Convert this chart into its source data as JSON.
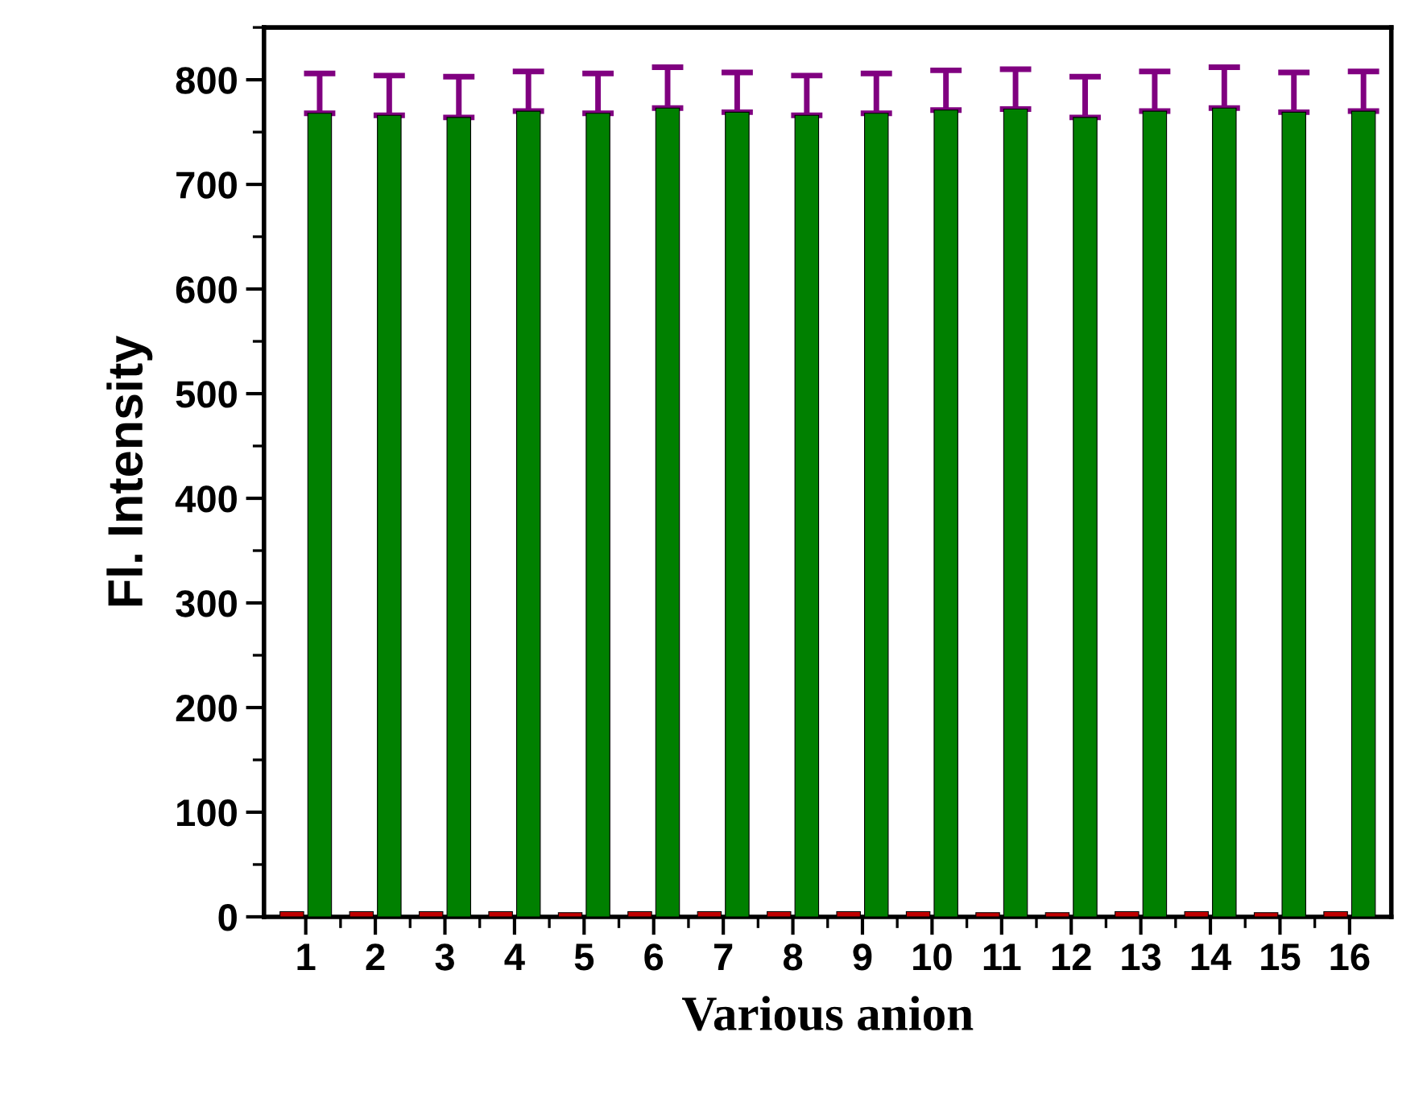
{
  "chart_data": {
    "type": "bar",
    "xlabel": "Various anion",
    "ylabel": "Fl. Intensity",
    "categories": [
      "1",
      "2",
      "3",
      "4",
      "5",
      "6",
      "7",
      "8",
      "9",
      "10",
      "11",
      "12",
      "13",
      "14",
      "15",
      "16"
    ],
    "series": [
      {
        "color": "#c00000",
        "values": [
          5,
          5,
          5,
          5,
          4,
          5,
          5,
          5,
          5,
          5,
          4,
          4,
          5,
          5,
          4,
          5
        ]
      },
      {
        "color": "#008000",
        "values": [
          768,
          766,
          764,
          770,
          768,
          773,
          769,
          766,
          768,
          771,
          772,
          764,
          770,
          773,
          769,
          770
        ],
        "errors": [
          [
            768,
            806
          ],
          [
            766,
            804
          ],
          [
            764,
            803
          ],
          [
            770,
            808
          ],
          [
            768,
            806
          ],
          [
            773,
            812
          ],
          [
            769,
            807
          ],
          [
            766,
            804
          ],
          [
            768,
            806
          ],
          [
            771,
            809
          ],
          [
            772,
            810
          ],
          [
            764,
            803
          ],
          [
            770,
            808
          ],
          [
            773,
            812
          ],
          [
            769,
            807
          ],
          [
            770,
            808
          ]
        ]
      }
    ],
    "ylim": [
      0,
      850
    ],
    "yticks": [
      0,
      100,
      200,
      300,
      400,
      500,
      600,
      700,
      800
    ],
    "grid": false,
    "legend": false
  }
}
